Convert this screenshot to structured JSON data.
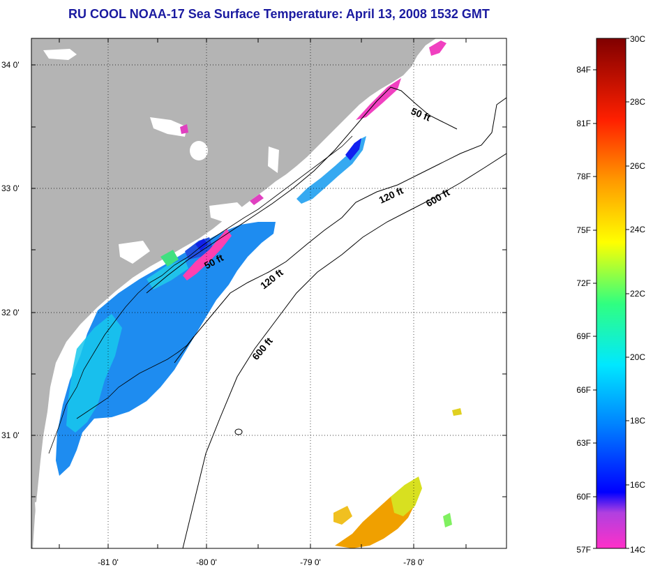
{
  "title": "RU COOL  NOAA-17  Sea Surface Temperature:  April 13, 2008 1532 GMT",
  "x_ticks": [
    "-81 0'",
    "-80 0'",
    "-79 0'",
    "-78 0'"
  ],
  "y_ticks": [
    "34 0'",
    "33 0'",
    "32 0'",
    "31 0'"
  ],
  "contours": {
    "c50_north": "50 ft",
    "c50_south": "50 ft",
    "c120_north": "120 ft",
    "c120_south": "120 ft",
    "c600_north": "600 ft",
    "c600_south": "600 ft"
  },
  "colorbar": {
    "celsius": [
      "30C",
      "28C",
      "26C",
      "24C",
      "22C",
      "20C",
      "18C",
      "16C",
      "14C"
    ],
    "fahrenheit": [
      "84F",
      "81F",
      "78F",
      "75F",
      "72F",
      "69F",
      "66F",
      "63F",
      "60F",
      "57F"
    ]
  },
  "colors": {
    "title": "#1a1aa0",
    "land": "#b4b4b4",
    "cold_water": "#1e8cf0",
    "warm_water": "#f0a000"
  }
}
